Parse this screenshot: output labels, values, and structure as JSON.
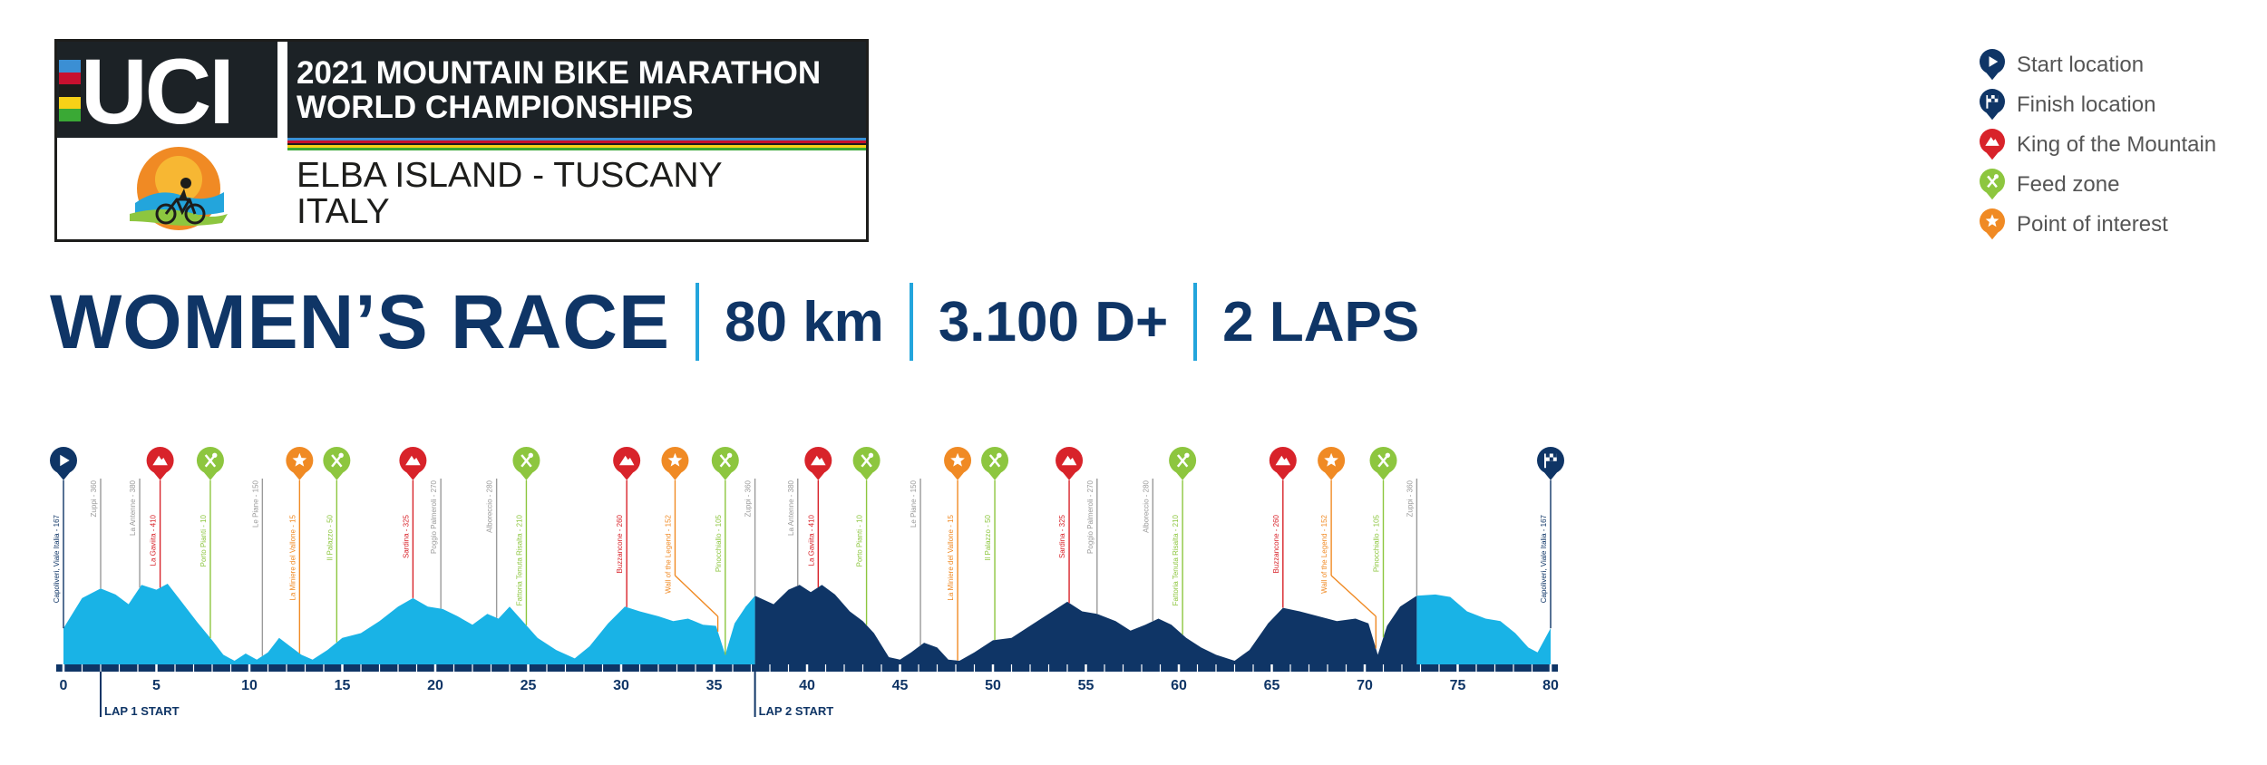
{
  "branding": {
    "uci_logo": "UCI",
    "championship_title_line1": "2021 MOUNTAIN BIKE MARATHON",
    "championship_title_line2": "WORLD CHAMPIONSHIPS",
    "location_line1": "ELBA ISLAND - TUSCANY",
    "location_line2": "ITALY",
    "uci_stripe_colors": [
      "#3b8fd4",
      "#c8102e",
      "#1d1d1b",
      "#f7d117",
      "#3aa935"
    ],
    "rainbow_colors": [
      "#3b8fd4",
      "#c8102e",
      "#1d1d1b",
      "#f7d117",
      "#3aa935"
    ]
  },
  "race": {
    "title": "WOMEN’S RACE",
    "distance": "80 km",
    "elevation": "3.100 D+",
    "laps": "2 LAPS"
  },
  "legend": [
    {
      "label": "Start location",
      "icon": "start-icon",
      "color": "#0f3566"
    },
    {
      "label": "Finish location",
      "icon": "finish-flag-icon",
      "color": "#0f3566"
    },
    {
      "label": "King of the Mountain",
      "icon": "mountain-icon",
      "color": "#d8232a"
    },
    {
      "label": "Feed zone",
      "icon": "feed-zone-icon",
      "color": "#8dc63f"
    },
    {
      "label": "Point of interest",
      "icon": "star-icon",
      "color": "#f08a24"
    }
  ],
  "colors": {
    "lap1": "#19b3e6",
    "lap2": "#0f3566",
    "axis": "#0f3566",
    "kom": "#d8232a",
    "feed": "#8dc63f",
    "poi": "#f08a24",
    "neutral": "#9a9a9a"
  },
  "chart_data": {
    "type": "area",
    "x_ticks": [
      "0",
      "5",
      "10",
      "15",
      "20",
      "25",
      "30",
      "35",
      "40",
      "45",
      "50",
      "55",
      "60",
      "65",
      "70",
      "75",
      "80"
    ],
    "xlim": [
      0,
      80
    ],
    "lap_markers": [
      {
        "km": 2,
        "label": "LAP 1 START"
      },
      {
        "km": 37.2,
        "label": "LAP 2 START"
      }
    ],
    "laps": [
      {
        "from": 0,
        "to": 37.2
      },
      {
        "from": 37.2,
        "to": 72.8
      },
      {
        "from": 72.8,
        "to": 80
      }
    ],
    "profile": [
      [
        0,
        30
      ],
      [
        1,
        55
      ],
      [
        2,
        63
      ],
      [
        2.8,
        58
      ],
      [
        3.5,
        50
      ],
      [
        4.2,
        66
      ],
      [
        5,
        62
      ],
      [
        5.6,
        67
      ],
      [
        6.2,
        55
      ],
      [
        7.2,
        35
      ],
      [
        8,
        20
      ],
      [
        8.6,
        8
      ],
      [
        9.2,
        3
      ],
      [
        9.8,
        9
      ],
      [
        10.4,
        4
      ],
      [
        11,
        10
      ],
      [
        11.6,
        22
      ],
      [
        12.2,
        15
      ],
      [
        12.8,
        8
      ],
      [
        13.4,
        4
      ],
      [
        14.2,
        12
      ],
      [
        15,
        22
      ],
      [
        16,
        26
      ],
      [
        17,
        36
      ],
      [
        18,
        48
      ],
      [
        18.8,
        55
      ],
      [
        19.6,
        48
      ],
      [
        20.4,
        46
      ],
      [
        21.2,
        40
      ],
      [
        22,
        33
      ],
      [
        22.8,
        42
      ],
      [
        23.4,
        38
      ],
      [
        24,
        48
      ],
      [
        24.7,
        36
      ],
      [
        25.5,
        22
      ],
      [
        26.5,
        12
      ],
      [
        27.5,
        5
      ],
      [
        28.3,
        15
      ],
      [
        29.3,
        34
      ],
      [
        30.2,
        48
      ],
      [
        31,
        44
      ],
      [
        32,
        40
      ],
      [
        32.8,
        36
      ],
      [
        33.6,
        38
      ],
      [
        34.4,
        33
      ],
      [
        35.1,
        32
      ],
      [
        35.6,
        8
      ],
      [
        36.1,
        34
      ],
      [
        36.7,
        48
      ],
      [
        37.2,
        57
      ],
      [
        38.2,
        50
      ],
      [
        39,
        62
      ],
      [
        39.6,
        66
      ],
      [
        40.2,
        60
      ],
      [
        40.8,
        66
      ],
      [
        41.5,
        58
      ],
      [
        42.3,
        44
      ],
      [
        43,
        36
      ],
      [
        43.6,
        26
      ],
      [
        44.4,
        6
      ],
      [
        45,
        4
      ],
      [
        45.6,
        10
      ],
      [
        46.3,
        18
      ],
      [
        47,
        14
      ],
      [
        47.6,
        4
      ],
      [
        48.2,
        3
      ],
      [
        49,
        10
      ],
      [
        50,
        20
      ],
      [
        51,
        22
      ],
      [
        52.2,
        34
      ],
      [
        53.2,
        44
      ],
      [
        54,
        52
      ],
      [
        54.8,
        44
      ],
      [
        55.6,
        42
      ],
      [
        56.6,
        36
      ],
      [
        57.4,
        28
      ],
      [
        58.2,
        33
      ],
      [
        58.9,
        38
      ],
      [
        59.6,
        33
      ],
      [
        60.4,
        22
      ],
      [
        61.2,
        14
      ],
      [
        62,
        8
      ],
      [
        63,
        3
      ],
      [
        63.8,
        12
      ],
      [
        64.8,
        34
      ],
      [
        65.6,
        47
      ],
      [
        66.5,
        44
      ],
      [
        67.5,
        40
      ],
      [
        68.5,
        36
      ],
      [
        69.5,
        38
      ],
      [
        70.2,
        34
      ],
      [
        70.7,
        8
      ],
      [
        71.2,
        32
      ],
      [
        71.9,
        48
      ],
      [
        72.8,
        57
      ],
      [
        73.8,
        58
      ],
      [
        74.6,
        56
      ],
      [
        75.5,
        44
      ],
      [
        76.5,
        38
      ],
      [
        77.3,
        36
      ],
      [
        78.1,
        26
      ],
      [
        78.8,
        14
      ],
      [
        79.3,
        10
      ],
      [
        80,
        30
      ]
    ],
    "waypoints": [
      {
        "km": 0,
        "type": "start",
        "label": "Capoliveri, Viale Italia - 167"
      },
      {
        "km": 2,
        "type": "neutral",
        "label": "Zuppi - 360"
      },
      {
        "km": 4.1,
        "type": "neutral",
        "label": "La Antenne - 380"
      },
      {
        "km": 5.2,
        "type": "kom",
        "label": "La Gaviita - 410"
      },
      {
        "km": 7.9,
        "type": "feed",
        "label": "Porto Pianti - 10"
      },
      {
        "km": 10.7,
        "type": "neutral",
        "label": "Le Piane - 150"
      },
      {
        "km": 12.7,
        "type": "poi",
        "label": "La Miniere del Vallone - 15"
      },
      {
        "km": 14.7,
        "type": "feed",
        "label": "Il Palazzo - 50"
      },
      {
        "km": 18.8,
        "type": "kom",
        "label": "Sardina - 325"
      },
      {
        "km": 20.3,
        "type": "neutral",
        "label": "Poggio Palmeroli - 270"
      },
      {
        "km": 23.3,
        "type": "neutral",
        "label": "Alboreccio - 280"
      },
      {
        "km": 24.9,
        "type": "feed",
        "label": "Fattoria Tenuta Risalta - 210"
      },
      {
        "km": 30.3,
        "type": "kom",
        "label": "Buzzancone - 260"
      },
      {
        "km": 35.2,
        "icon_km": 32.9,
        "type": "poi",
        "label": "Wall of the Legend - 152"
      },
      {
        "km": 35.6,
        "type": "feed",
        "label": "Pinocchiallo - 105"
      },
      {
        "km": 37.2,
        "type": "neutral",
        "label": "Zuppi - 360"
      },
      {
        "km": 39.5,
        "type": "neutral",
        "label": "La Antenne - 380"
      },
      {
        "km": 40.6,
        "type": "kom",
        "label": "La Gaviita - 410"
      },
      {
        "km": 43.2,
        "type": "feed",
        "label": "Porto Pianti - 10"
      },
      {
        "km": 46.1,
        "type": "neutral",
        "label": "Le Piane - 150"
      },
      {
        "km": 48.1,
        "type": "poi",
        "label": "La Miniere del Vallone - 15"
      },
      {
        "km": 50.1,
        "type": "feed",
        "label": "Il Palazzo - 50"
      },
      {
        "km": 54.1,
        "type": "kom",
        "label": "Sardina - 325"
      },
      {
        "km": 55.6,
        "type": "neutral",
        "label": "Poggio Palmeroli - 270"
      },
      {
        "km": 58.6,
        "type": "neutral",
        "label": "Alboreccio - 280"
      },
      {
        "km": 60.2,
        "type": "feed",
        "label": "Fattoria Tenuta Risalta - 210"
      },
      {
        "km": 65.6,
        "type": "kom",
        "label": "Buzzancone - 260"
      },
      {
        "km": 70.6,
        "icon_km": 68.2,
        "type": "poi",
        "label": "Wall of the Legend - 152"
      },
      {
        "km": 71,
        "type": "feed",
        "label": "Pinocchiallo - 105"
      },
      {
        "km": 72.8,
        "type": "neutral",
        "label": "Zuppi - 360"
      },
      {
        "km": 80,
        "type": "finish",
        "label": "Capoliveri, Viale Italia - 167"
      }
    ]
  }
}
